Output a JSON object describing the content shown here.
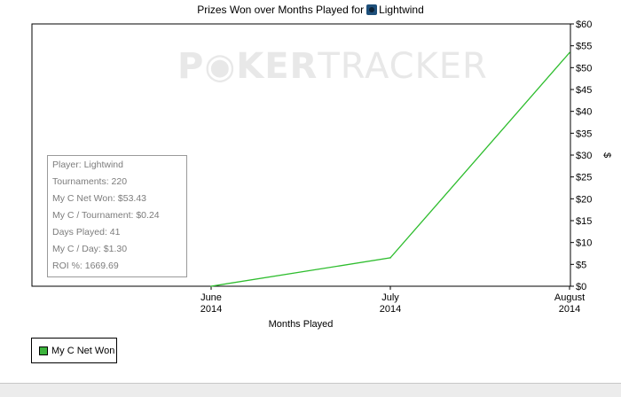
{
  "chart_data": {
    "type": "line",
    "title_prefix": "Prizes Won over Months Played for",
    "title_player": "Lightwind",
    "xlabel": "Months Played",
    "ylabel": "$",
    "x_ticks": [
      {
        "month": "June",
        "year": "2014"
      },
      {
        "month": "July",
        "year": "2014"
      },
      {
        "month": "August",
        "year": "2014"
      }
    ],
    "ylim": [
      0,
      60
    ],
    "y_ticks": [
      "$0",
      "$5",
      "$10",
      "$15",
      "$20",
      "$25",
      "$30",
      "$35",
      "$40",
      "$45",
      "$50",
      "$55",
      "$60"
    ],
    "series": [
      {
        "name": "My C Net Won",
        "color": "#2ebd2e",
        "values": [
          0,
          6.5,
          53.43
        ]
      }
    ],
    "grid": false,
    "legend_position": "bottom-left"
  },
  "watermark": {
    "part1": "P",
    "part2": "KER",
    "part3": "TRACKER"
  },
  "stats": [
    "Player: Lightwind",
    "Tournaments: 220",
    "My C Net Won: $53.43",
    "My C / Tournament: $0.24",
    "Days Played: 41",
    "My C / Day: $1.30",
    "ROI %: 1669.69"
  ],
  "legend_label": "My C Net Won"
}
